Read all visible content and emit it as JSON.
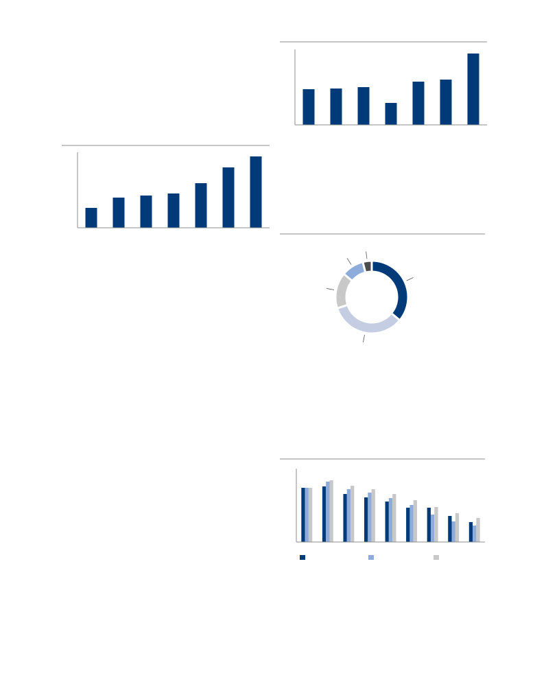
{
  "chart_data": [
    {
      "type": "bar",
      "categories": [
        null,
        null,
        null,
        null,
        null,
        null,
        null
      ],
      "values": [
        52,
        53,
        55,
        32,
        63,
        66,
        104
      ],
      "color": "#003a78",
      "ylim": [
        0,
        110
      ]
    },
    {
      "type": "bar",
      "categories": [
        null,
        null,
        null,
        null,
        null,
        null,
        null
      ],
      "values": [
        29,
        44,
        47,
        50,
        65,
        88,
        104
      ],
      "color": "#003a78",
      "ylim": [
        0,
        110
      ]
    },
    {
      "type": "donut",
      "values": [
        36,
        34,
        16,
        10,
        4
      ],
      "colors": [
        "#003a78",
        "#c5cde3",
        "#c8c8c8",
        "#8eacdb",
        "#4d4d4d"
      ]
    },
    {
      "type": "grouped-bar",
      "categories": [
        null,
        null,
        null,
        null,
        null,
        null,
        null,
        null,
        null
      ],
      "ylim": [
        0,
        107
      ],
      "series": [
        {
          "color": "#003a78",
          "values": [
            79,
            81,
            70,
            65,
            59,
            50,
            50,
            38,
            29
          ]
        },
        {
          "color": "#8eacdb",
          "values": [
            79,
            88,
            77,
            72,
            64,
            54,
            40,
            30,
            24
          ]
        },
        {
          "color": "#c8c8c8",
          "values": [
            79,
            90,
            82,
            77,
            70,
            61,
            51,
            42,
            35
          ]
        }
      ]
    }
  ]
}
